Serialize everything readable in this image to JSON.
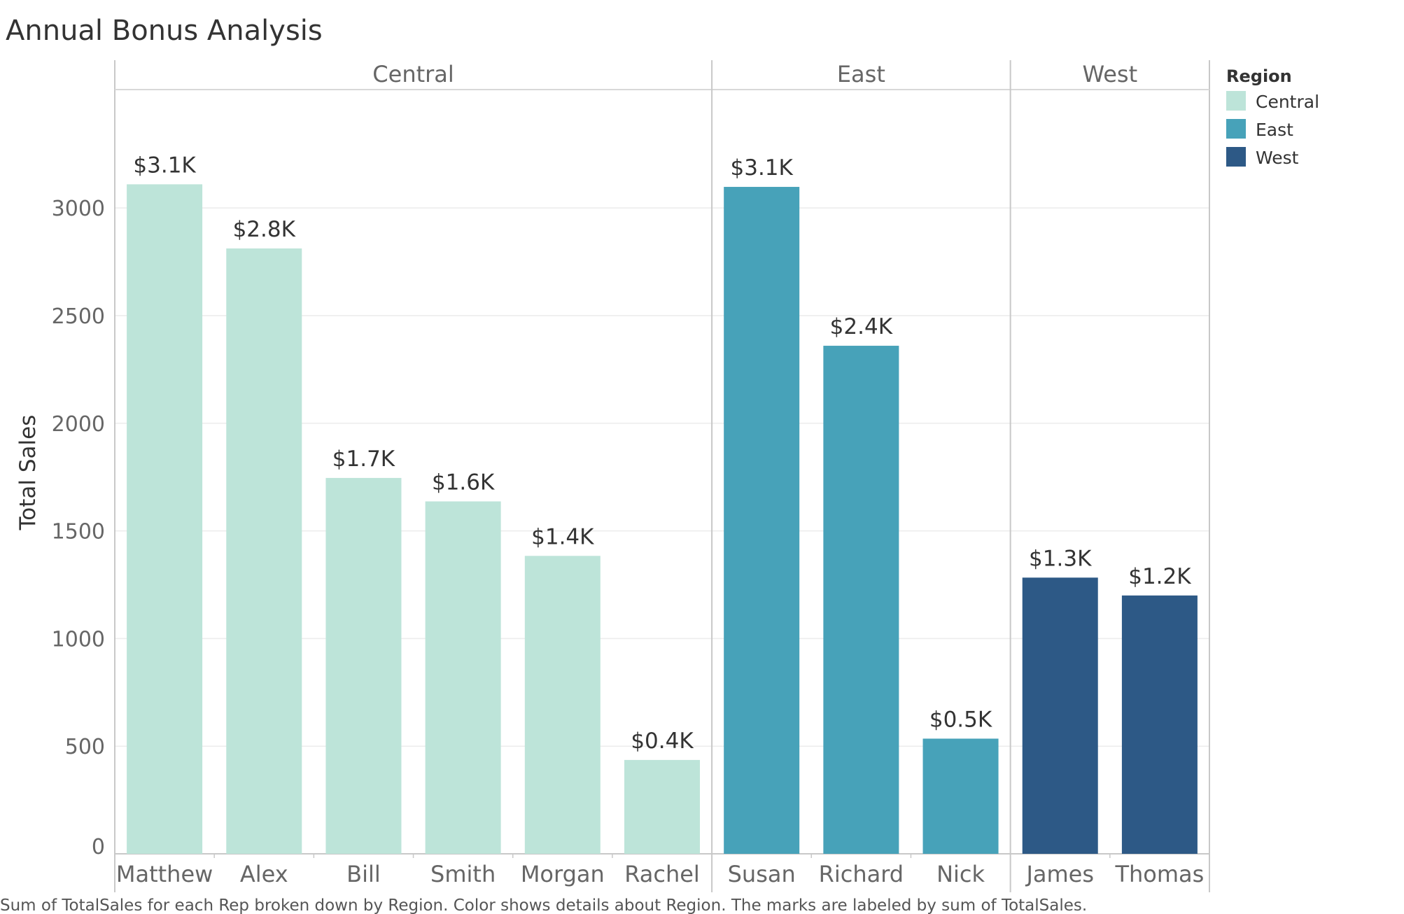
{
  "chart_data": {
    "type": "bar",
    "title": "Annual Bonus Analysis",
    "ylabel": "Total Sales",
    "ylim": [
      0,
      3550
    ],
    "yticks": [
      0,
      500,
      1000,
      1500,
      2000,
      2500,
      3000
    ],
    "grid": true,
    "legend": {
      "title": "Region",
      "position": "top-right",
      "items": [
        {
          "label": "Central",
          "color": "#bde4d9"
        },
        {
          "label": "East",
          "color": "#47a2b9"
        },
        {
          "label": "West",
          "color": "#2d5986"
        }
      ]
    },
    "panels": [
      {
        "region": "Central",
        "color": "#bde4d9",
        "categories": [
          "Matthew",
          "Alex",
          "Bill",
          "Smith",
          "Morgan",
          "Rachel"
        ],
        "values": [
          3110,
          2812,
          1746,
          1637,
          1384,
          436
        ],
        "labels": [
          "$3.1K",
          "$2.8K",
          "$1.7K",
          "$1.6K",
          "$1.4K",
          "$0.4K"
        ]
      },
      {
        "region": "East",
        "color": "#47a2b9",
        "categories": [
          "Susan",
          "Richard",
          "Nick"
        ],
        "values": [
          3098,
          2360,
          535
        ],
        "labels": [
          "$3.1K",
          "$2.4K",
          "$0.5K"
        ]
      },
      {
        "region": "West",
        "color": "#2d5986",
        "categories": [
          "James",
          "Thomas"
        ],
        "values": [
          1283,
          1200
        ],
        "labels": [
          "$1.3K",
          "$1.2K"
        ]
      }
    ],
    "caption": "Sum of TotalSales for each Rep broken down by Region.  Color shows details about Region.  The marks are labeled by sum of TotalSales."
  }
}
